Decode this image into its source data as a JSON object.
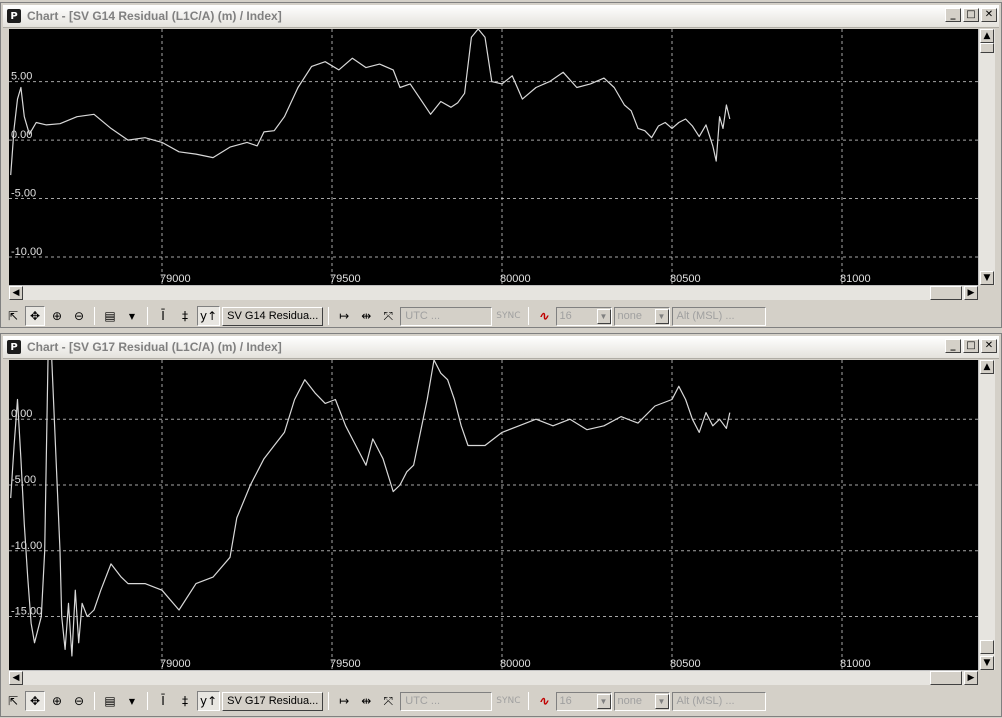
{
  "colors": {
    "plot_bg": "#000000",
    "trace": "#d8d8d8",
    "grid": "#d0d0d0",
    "window_bg": "#d4d0c8"
  },
  "windows": [
    {
      "title": "Chart - [SV G14 Residual (L1C/A) (m) / Index]",
      "icon": "P",
      "series_button": "SV G14 Residua...",
      "time_field": "UTC ...",
      "sync_label": "SYNC",
      "size_value": "16",
      "style_value": "none",
      "alt_field": "Alt (MSL) ..."
    },
    {
      "title": "Chart - [SV G17 Residual (L1C/A) (m) / Index]",
      "icon": "P",
      "series_button": "SV G17 Residua...",
      "time_field": "UTC ...",
      "sync_label": "SYNC",
      "size_value": "16",
      "style_value": "none",
      "alt_field": "Alt (MSL) ..."
    }
  ],
  "window_controls": {
    "minimize": "_",
    "maximize": "□",
    "close": "✕"
  },
  "toolbar_icons": [
    "arrow-pointer-icon",
    "pan-move-icon",
    "zoom-in-icon",
    "zoom-out-icon",
    "chart-properties-icon",
    "dropdown-arrow-icon",
    "vertical-cursor-icon",
    "vertical-range-icon",
    "y-axis-scale-icon",
    "horizontal-fit-icon",
    "horizontal-compress-icon",
    "x-axis-reset-icon",
    "sync-icon",
    "waveform-icon"
  ],
  "chart_data": [
    {
      "type": "line",
      "title": "SV G14 Residual (L1C/A) (m) / Index",
      "xlim": [
        78550,
        81400
      ],
      "ylim": [
        -11.2,
        9.5
      ],
      "x_ticks": [
        79000,
        79500,
        80000,
        80500,
        81000
      ],
      "y_ticks": [
        5.0,
        0.0,
        -5.0,
        -10.0
      ],
      "x_tick_labels": [
        "79000",
        "79500",
        "80000",
        "80500",
        "81000"
      ],
      "y_tick_labels": [
        "5.00",
        "0.00",
        "-5.00",
        "-10.00"
      ],
      "grid": true,
      "series": [
        {
          "x": [
            78555,
            78565,
            78575,
            78585,
            78595,
            78610,
            78630,
            78660,
            78700,
            78750,
            78800,
            78850,
            78900,
            78950,
            79000,
            79050,
            79100,
            79150,
            79200,
            79250,
            79280,
            79300,
            79330,
            79360,
            79400,
            79440,
            79480,
            79520,
            79560,
            79600,
            79640,
            79680,
            79700,
            79730,
            79760,
            79790,
            79820,
            79850,
            79870,
            79890,
            79910,
            79930,
            79950,
            79970,
            80000,
            80030,
            80060,
            80100,
            80140,
            80180,
            80220,
            80260,
            80300,
            80330,
            80360,
            80380,
            80400,
            80420,
            80440,
            80460,
            80480,
            80500,
            80520,
            80540,
            80560,
            80580,
            80600,
            80620,
            80630,
            80640,
            80650,
            80660,
            80670
          ],
          "y": [
            -3.0,
            1.0,
            3.5,
            4.5,
            2.0,
            0.5,
            1.5,
            1.3,
            1.4,
            2.0,
            2.2,
            1.0,
            0.0,
            0.2,
            -0.2,
            -1.0,
            -1.2,
            -1.5,
            -0.6,
            -0.2,
            -0.5,
            0.7,
            0.8,
            2.0,
            4.5,
            6.3,
            6.7,
            6.0,
            7.0,
            6.2,
            6.5,
            6.0,
            4.5,
            4.8,
            3.5,
            2.2,
            3.3,
            2.8,
            3.2,
            4.0,
            8.8,
            9.5,
            8.8,
            5.0,
            4.8,
            5.5,
            3.5,
            4.5,
            5.0,
            5.8,
            4.5,
            4.8,
            5.3,
            4.5,
            3.0,
            2.5,
            1.0,
            0.8,
            0.2,
            1.2,
            1.5,
            1.0,
            1.5,
            1.8,
            1.2,
            0.3,
            1.3,
            -0.5,
            -1.8,
            2.0,
            1.0,
            3.0,
            1.8
          ]
        }
      ]
    },
    {
      "type": "line",
      "title": "SV G17 Residual (L1C/A) (m) / Index",
      "xlim": [
        78550,
        81400
      ],
      "ylim": [
        -18.0,
        4.5
      ],
      "x_ticks": [
        79000,
        79500,
        80000,
        80500,
        81000
      ],
      "y_ticks": [
        0.0,
        -5.0,
        -10.0,
        -15.0
      ],
      "x_tick_labels": [
        "79000",
        "79500",
        "80000",
        "80500",
        "81000"
      ],
      "y_tick_labels": [
        "0.00",
        "-5.00",
        "-10.00",
        "-15.00"
      ],
      "grid": true,
      "series": [
        {
          "x": [
            78555,
            78565,
            78575,
            78585,
            78595,
            78605,
            78615,
            78625,
            78635,
            78645,
            78655,
            78665,
            78675,
            78690,
            78700,
            78705,
            78715,
            78725,
            78735,
            78745,
            78755,
            78765,
            78780,
            78800,
            78820,
            78850,
            78880,
            78900,
            78950,
            79000,
            79050,
            79100,
            79150,
            79200,
            79220,
            79260,
            79300,
            79330,
            79360,
            79390,
            79420,
            79450,
            79480,
            79510,
            79540,
            79570,
            79600,
            79620,
            79650,
            79680,
            79700,
            79720,
            79740,
            79760,
            79780,
            79800,
            79820,
            79840,
            79860,
            79880,
            79900,
            79950,
            80000,
            80050,
            80100,
            80150,
            80200,
            80250,
            80300,
            80350,
            80400,
            80450,
            80500,
            80520,
            80540,
            80560,
            80580,
            80600,
            80620,
            80640,
            80660,
            80670
          ],
          "y": [
            -6.0,
            -2.0,
            1.5,
            -3.0,
            -8.0,
            -12.0,
            -15.5,
            -17.0,
            -16.0,
            -15.0,
            -10.0,
            5.0,
            5.0,
            -4.0,
            -10.0,
            -15.0,
            -17.5,
            -14.0,
            -18.0,
            -13.0,
            -17.0,
            -14.0,
            -15.0,
            -14.5,
            -13.0,
            -11.0,
            -12.0,
            -12.5,
            -12.5,
            -13.0,
            -14.5,
            -12.5,
            -12.0,
            -10.5,
            -7.5,
            -5.0,
            -3.0,
            -2.0,
            -1.0,
            1.5,
            3.0,
            2.0,
            1.2,
            1.5,
            -0.5,
            -2.0,
            -3.5,
            -1.5,
            -3.0,
            -5.5,
            -5.0,
            -4.0,
            -3.5,
            -1.0,
            1.5,
            4.5,
            3.5,
            3.0,
            1.5,
            -0.5,
            -2.0,
            -2.0,
            -1.0,
            -0.5,
            0.0,
            -0.5,
            0.0,
            -0.8,
            -0.5,
            0.2,
            -0.3,
            1.0,
            1.5,
            2.5,
            1.5,
            0.0,
            -1.0,
            0.5,
            -0.5,
            0.0,
            -0.7,
            0.5
          ]
        }
      ]
    }
  ]
}
